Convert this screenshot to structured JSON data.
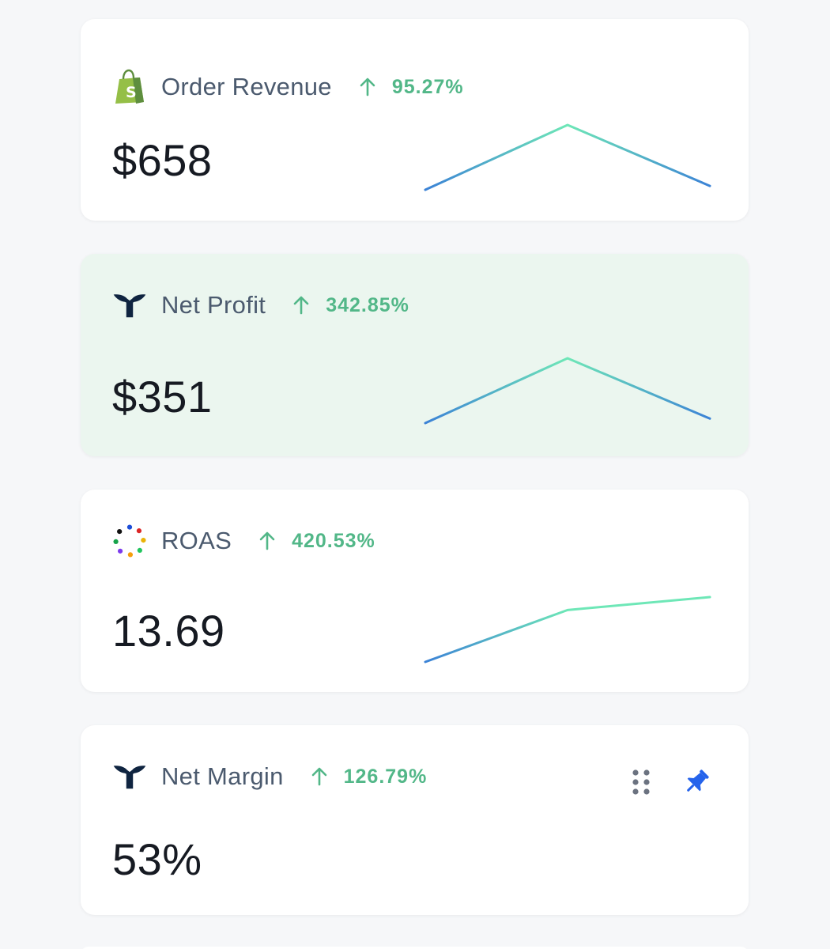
{
  "colors": {
    "background": "#f6f7f9",
    "card": "#ffffff",
    "highlight_card": "#ebf6ef",
    "title": "#4b5a6e",
    "value": "#161a22",
    "positive": "#52b788",
    "spark_start": "#3b82d6",
    "spark_end": "#6ee7b7",
    "pin": "#2563eb"
  },
  "metrics": [
    {
      "title": "Order Revenue",
      "icon": "shopify-icon",
      "change": "95.27%",
      "change_direction": "up",
      "value": "$658",
      "sparkline": [
        0.0,
        1.0,
        0.06
      ]
    },
    {
      "title": "Net Profit",
      "icon": "triple-whale-icon",
      "change": "342.85%",
      "change_direction": "up",
      "value": "$351",
      "sparkline": [
        0.0,
        1.0,
        0.07
      ]
    },
    {
      "title": "ROAS",
      "icon": "dots-ring-icon",
      "change": "420.53%",
      "change_direction": "up",
      "value": "13.69",
      "sparkline": [
        0.0,
        0.8,
        1.0
      ]
    },
    {
      "title": "Net Margin",
      "icon": "triple-whale-icon",
      "change": "126.79%",
      "change_direction": "up",
      "value": "53%",
      "sparkline": null
    }
  ]
}
